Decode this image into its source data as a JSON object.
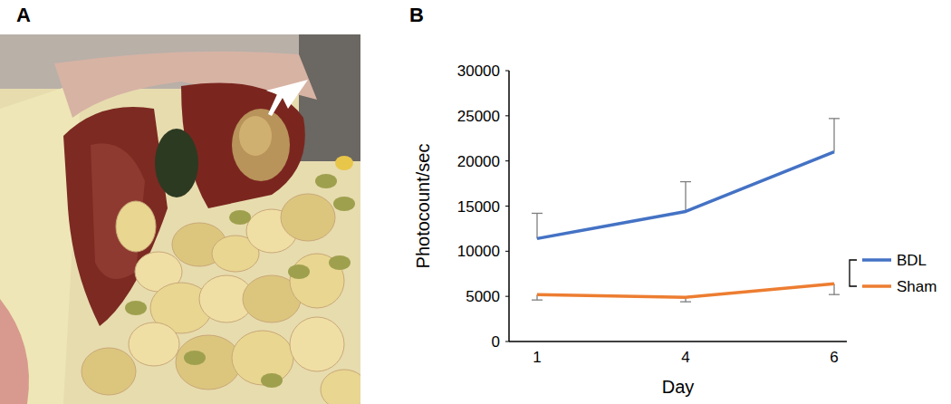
{
  "panel_labels": [
    "A",
    "B"
  ],
  "chart_data": {
    "type": "line",
    "x_label": "Day",
    "y_label": "Photocount/sec",
    "categories": [
      "1",
      "4",
      "6"
    ],
    "ylim": [
      0,
      30000
    ],
    "yticks": [
      0,
      5000,
      10000,
      15000,
      20000,
      25000,
      30000
    ],
    "grid": false,
    "legend": "right",
    "series": [
      {
        "name": "BDL",
        "color": "#4472c4",
        "values": [
          11400,
          14400,
          21000
        ],
        "errors": [
          2800,
          3300,
          3700
        ]
      },
      {
        "name": "Sham",
        "color": "#ed7d31",
        "values": [
          5200,
          4900,
          6400
        ],
        "errors": [
          600,
          500,
          1200
        ]
      }
    ]
  }
}
